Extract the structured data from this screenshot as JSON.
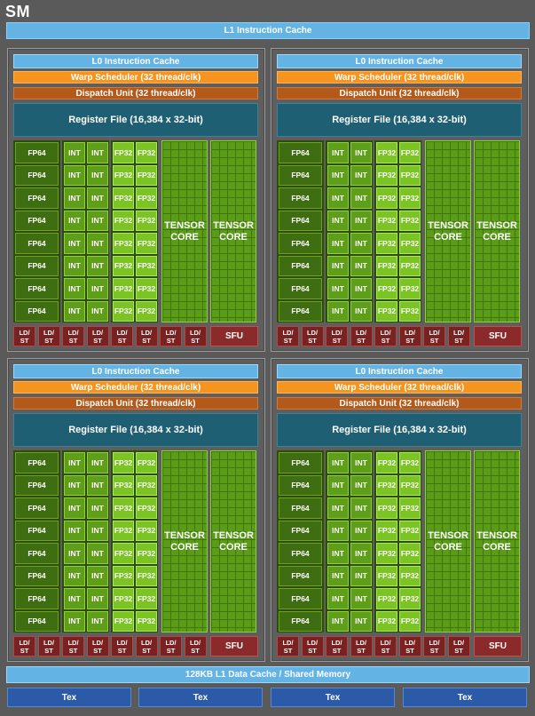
{
  "sm_title": "SM",
  "l1_instruction_cache": "L1 Instruction Cache",
  "partition": {
    "l0_instruction_cache": "L0 Instruction Cache",
    "warp_scheduler": "Warp Scheduler (32 thread/clk)",
    "dispatch_unit": "Dispatch Unit (32 thread/clk)",
    "register_file": "Register File (16,384 x 32-bit)",
    "fp64_label": "FP64",
    "int_label": "INT",
    "fp32_label": "FP32",
    "tensor_line1": "TENSOR",
    "tensor_line2": "CORE",
    "ldst_line1": "LD/",
    "ldst_line2": "ST",
    "sfu_label": "SFU",
    "rows": 8,
    "ldst_count": 8
  },
  "partitions": [
    {
      "id": "top-left"
    },
    {
      "id": "top-right"
    },
    {
      "id": "bottom-left"
    },
    {
      "id": "bottom-right"
    }
  ],
  "l1_data_cache": "128KB L1 Data Cache / Shared Memory",
  "tex_units": [
    "Tex",
    "Tex",
    "Tex",
    "Tex"
  ]
}
